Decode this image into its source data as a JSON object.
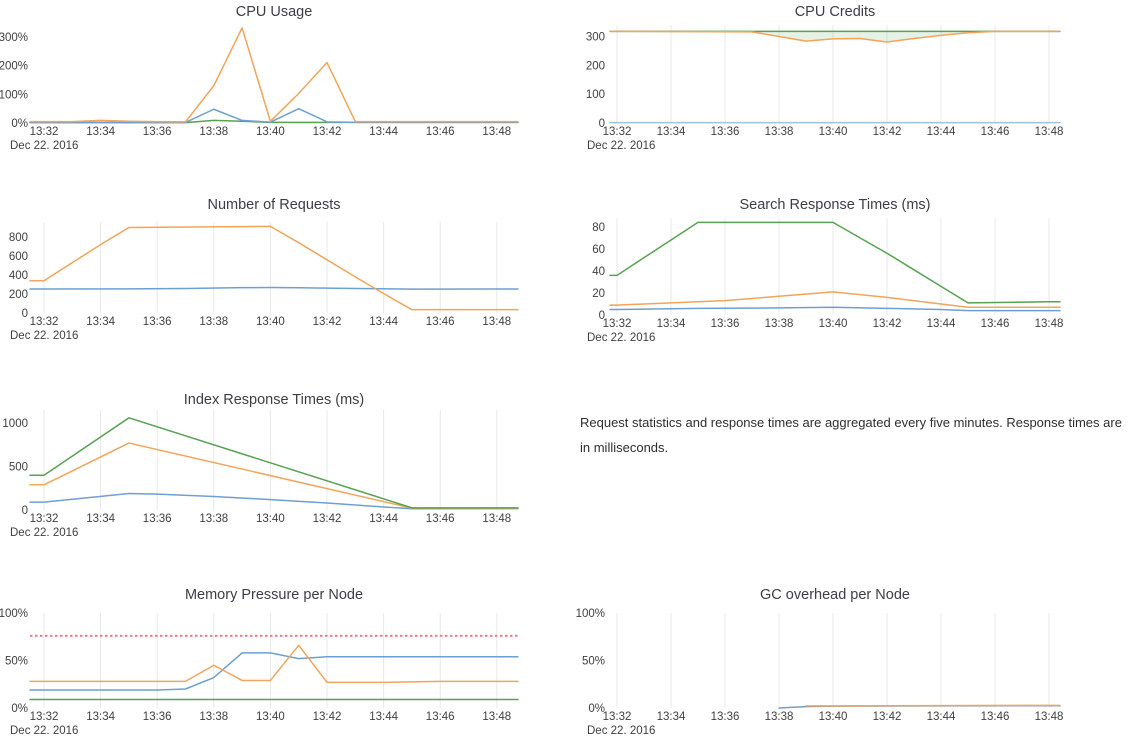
{
  "page": {
    "background": "#ffffff",
    "text_color": "#3f3f3f",
    "grid_color": "#e8e8e8"
  },
  "annotation": {
    "text": "Request statistics and response times are aggregated every five minutes. Response times are in milliseconds."
  },
  "chart_data": [
    {
      "type": "line",
      "title": "CPU Usage",
      "x_tick_labels": [
        "13:32",
        "13:34",
        "13:36",
        "13:38",
        "13:40",
        "13:42",
        "13:44",
        "13:46",
        "13:48"
      ],
      "date_label": "Dec 22. 2016",
      "y_tick_labels": [
        "0%",
        "100%",
        "200%",
        "300%"
      ],
      "y_tick_values": [
        0,
        100,
        200,
        300
      ],
      "ylim": [
        0,
        342
      ],
      "grid_vertical": false,
      "legend": "none",
      "series": [
        {
          "name": "green",
          "color": "#57a152",
          "x": [
            32,
            37,
            38,
            39,
            40,
            48
          ],
          "y": [
            1.5,
            1.5,
            9,
            6,
            2,
            2
          ]
        },
        {
          "name": "blue",
          "color": "#6f9fd0",
          "x": [
            32,
            37,
            38,
            39,
            40,
            41,
            42,
            43,
            48
          ],
          "y": [
            2,
            2,
            48,
            9,
            3,
            50,
            4,
            2,
            2
          ]
        },
        {
          "name": "orange",
          "color": "#f2a45a",
          "x": [
            32,
            33,
            34,
            35,
            36,
            37,
            38,
            39,
            40,
            41,
            42,
            43,
            48
          ],
          "y": [
            5,
            5,
            9,
            6,
            5,
            4,
            130,
            332,
            6,
            103,
            211,
            5,
            5
          ]
        }
      ]
    },
    {
      "type": "line",
      "title": "CPU Credits",
      "x_tick_labels": [
        "13:32",
        "13:34",
        "13:36",
        "13:38",
        "13:40",
        "13:42",
        "13:44",
        "13:46",
        "13:48"
      ],
      "date_label": "Dec 22. 2016",
      "y_tick_labels": [
        "0",
        "100",
        "200",
        "300"
      ],
      "y_tick_values": [
        0,
        100,
        200,
        300
      ],
      "ylim": [
        0,
        340
      ],
      "grid_vertical": true,
      "legend": "none",
      "fill_between": {
        "series": [
          0,
          1
        ],
        "color": "rgba(87,161,82,0.14)"
      },
      "series": [
        {
          "name": "green",
          "color": "#57a152",
          "x": [
            32,
            48
          ],
          "y": [
            318,
            318
          ]
        },
        {
          "name": "orange",
          "color": "#f2a45a",
          "x": [
            32,
            37,
            38,
            39,
            40,
            41,
            42,
            43,
            44,
            45,
            46,
            48
          ],
          "y": [
            318,
            316,
            300,
            284,
            292,
            293,
            281,
            293,
            304,
            313,
            318,
            318
          ]
        },
        {
          "name": "blue",
          "color": "#9dc2e0",
          "x": [
            32,
            48
          ],
          "y": [
            1.5,
            1.5
          ]
        }
      ]
    },
    {
      "type": "line",
      "title": "Number of Requests",
      "x_tick_labels": [
        "13:32",
        "13:34",
        "13:36",
        "13:38",
        "13:40",
        "13:42",
        "13:44",
        "13:46",
        "13:48"
      ],
      "date_label": "Dec 22. 2016",
      "y_tick_labels": [
        "0",
        "200",
        "400",
        "600",
        "800"
      ],
      "y_tick_values": [
        0,
        200,
        400,
        600,
        800
      ],
      "ylim": [
        0,
        958
      ],
      "grid_vertical": true,
      "legend": "none",
      "series": [
        {
          "name": "blue",
          "color": "#6f9fd0",
          "x": [
            32,
            35,
            37,
            39,
            40,
            41,
            43,
            45,
            48
          ],
          "y": [
            253,
            254,
            258,
            267,
            268,
            266,
            258,
            252,
            253
          ]
        },
        {
          "name": "orange",
          "color": "#f2a45a",
          "x": [
            32,
            33,
            34,
            35,
            40,
            41,
            42,
            43,
            44,
            45,
            48
          ],
          "y": [
            340,
            530,
            720,
            900,
            912,
            740,
            560,
            380,
            205,
            35,
            35
          ]
        }
      ]
    },
    {
      "type": "line",
      "title": "Search Response Times (ms)",
      "x_tick_labels": [
        "13:32",
        "13:34",
        "13:36",
        "13:38",
        "13:40",
        "13:42",
        "13:44",
        "13:46",
        "13:48"
      ],
      "date_label": "Dec 22. 2016",
      "y_tick_labels": [
        "0",
        "20",
        "40",
        "60",
        "80"
      ],
      "y_tick_values": [
        0,
        20,
        40,
        60,
        80
      ],
      "ylim": [
        0,
        88
      ],
      "grid_vertical": true,
      "legend": "none",
      "series": [
        {
          "name": "blue",
          "color": "#6f9fd0",
          "x": [
            32,
            35,
            38,
            40,
            42,
            44,
            45,
            48
          ],
          "y": [
            5,
            6,
            6.5,
            7,
            6,
            5,
            4,
            4
          ]
        },
        {
          "name": "orange",
          "color": "#f2a45a",
          "x": [
            32,
            34,
            36,
            38,
            40,
            42,
            44,
            45,
            48
          ],
          "y": [
            9,
            11,
            13,
            17,
            21,
            16,
            10,
            7,
            7
          ]
        },
        {
          "name": "green",
          "color": "#57a152",
          "x": [
            32,
            33,
            34,
            35,
            40,
            41,
            42,
            43,
            44,
            45,
            48
          ],
          "y": [
            36,
            52,
            68,
            84,
            84,
            70,
            56,
            41,
            26,
            11,
            12
          ]
        }
      ]
    },
    {
      "type": "line",
      "title": "Index Response Times (ms)",
      "x_tick_labels": [
        "13:32",
        "13:34",
        "13:36",
        "13:38",
        "13:40",
        "13:42",
        "13:44",
        "13:46",
        "13:48"
      ],
      "date_label": "Dec 22. 2016",
      "y_tick_labels": [
        "0",
        "500",
        "1000"
      ],
      "y_tick_values": [
        0,
        500,
        1000
      ],
      "ylim": [
        0,
        1150
      ],
      "grid_vertical": true,
      "legend": "none",
      "series": [
        {
          "name": "blue",
          "color": "#6f9fd0",
          "x": [
            32,
            35,
            36,
            38,
            40,
            42,
            44,
            45,
            48
          ],
          "y": [
            90,
            190,
            182,
            155,
            120,
            80,
            35,
            15,
            16
          ]
        },
        {
          "name": "orange",
          "color": "#f2a45a",
          "x": [
            32,
            35,
            45,
            48
          ],
          "y": [
            290,
            770,
            22,
            22
          ]
        },
        {
          "name": "green",
          "color": "#57a152",
          "x": [
            32,
            35,
            45,
            48
          ],
          "y": [
            400,
            1060,
            25,
            25
          ]
        }
      ]
    },
    {
      "type": "line",
      "title": "Memory Pressure per Node",
      "x_tick_labels": [
        "13:32",
        "13:34",
        "13:36",
        "13:38",
        "13:40",
        "13:42",
        "13:44",
        "13:46",
        "13:48"
      ],
      "date_label": "Dec 22. 2016",
      "y_tick_labels": [
        "0%",
        "50%",
        "100%"
      ],
      "y_tick_values": [
        0,
        50,
        100
      ],
      "ylim": [
        0,
        100
      ],
      "grid_vertical": true,
      "legend": "none",
      "threshold": {
        "value": 76,
        "color": "#ec7480",
        "style": "dotted"
      },
      "series": [
        {
          "name": "green",
          "color": "#57a152",
          "x": [
            32,
            48
          ],
          "y": [
            9,
            9
          ]
        },
        {
          "name": "blue",
          "color": "#6f9fd0",
          "x": [
            32,
            36,
            37,
            38,
            39,
            40,
            41,
            42,
            48
          ],
          "y": [
            19,
            19,
            20,
            32,
            58,
            58,
            52,
            54,
            54
          ]
        },
        {
          "name": "orange",
          "color": "#f2a45a",
          "x": [
            32,
            37,
            38,
            39,
            40,
            41,
            42,
            44,
            46,
            48
          ],
          "y": [
            28,
            28,
            45,
            29,
            29,
            66,
            27,
            27,
            28,
            28
          ]
        }
      ]
    },
    {
      "type": "line",
      "title": "GC overhead per Node",
      "x_tick_labels": [
        "13:32",
        "13:34",
        "13:36",
        "13:38",
        "13:40",
        "13:42",
        "13:44",
        "13:46",
        "13:48"
      ],
      "date_label": "Dec 22. 2016",
      "y_tick_labels": [
        "0%",
        "50%",
        "100%"
      ],
      "y_tick_values": [
        0,
        50,
        100
      ],
      "ylim": [
        0,
        100
      ],
      "grid_vertical": true,
      "legend": "none",
      "series": [
        {
          "name": "blue",
          "color": "#6f9fd0",
          "x": [
            38,
            39,
            40,
            48
          ],
          "y": [
            0,
            1.5,
            2,
            2.4
          ]
        },
        {
          "name": "orange",
          "color": "#f2a45a",
          "x": [
            39,
            40,
            48
          ],
          "y": [
            2.2,
            2.3,
            2.8
          ]
        }
      ]
    }
  ]
}
